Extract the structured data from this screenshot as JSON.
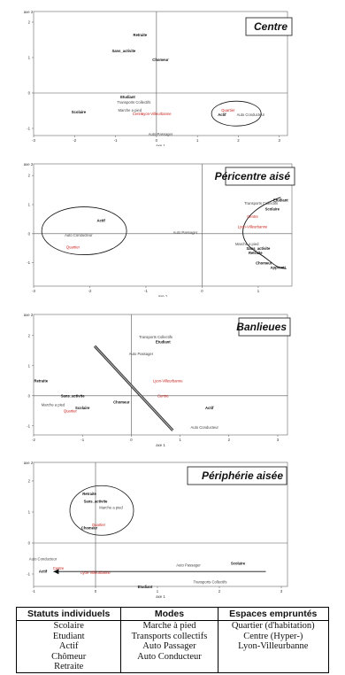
{
  "chart_data": [
    {
      "type": "scatter",
      "title": "Centre",
      "xlabel": "axe 1",
      "ylabel": "axe 2",
      "xticks": [
        "-3",
        "-2",
        "-1",
        "0",
        "1",
        "2",
        "3"
      ],
      "yticks": [
        "2",
        "1",
        "0",
        "-1"
      ],
      "xlim": [
        -3,
        3.2
      ],
      "ylim": [
        -1.2,
        2.3
      ],
      "points": [
        {
          "label": "Retraite",
          "x": -0.4,
          "y": 1.6,
          "color": "black"
        },
        {
          "label": "Sans_activite",
          "x": -0.8,
          "y": 1.15,
          "color": "black"
        },
        {
          "label": "Chomeur",
          "x": 0.1,
          "y": 0.9,
          "color": "black"
        },
        {
          "label": "Etudiant",
          "x": -0.7,
          "y": -0.15,
          "color": "black"
        },
        {
          "label": "Transports Collectifs",
          "x": -0.55,
          "y": -0.3,
          "color": "gray"
        },
        {
          "label": "Marche a pied",
          "x": -0.65,
          "y": -0.52,
          "color": "gray"
        },
        {
          "label": "Centre",
          "x": -0.45,
          "y": -0.62,
          "color": "red"
        },
        {
          "label": "Lyon-Villeurbanne",
          "x": 0.0,
          "y": -0.62,
          "color": "red"
        },
        {
          "label": "Scolaire",
          "x": -1.9,
          "y": -0.58,
          "color": "black"
        },
        {
          "label": "Auto Passager",
          "x": 0.1,
          "y": -1.2,
          "color": "gray"
        },
        {
          "label": "Quartier",
          "x": 1.75,
          "y": -0.52,
          "color": "red"
        },
        {
          "label": "Actif",
          "x": 1.6,
          "y": -0.65,
          "color": "black"
        },
        {
          "label": "Auto Conducteur",
          "x": 2.3,
          "y": -0.65,
          "color": "gray"
        }
      ],
      "shape": "ellipse"
    },
    {
      "type": "scatter",
      "title": "Péricentre aisé",
      "xlabel": "axe 1",
      "ylabel": "axe 2",
      "xticks": [
        "-3",
        "-2",
        "-1",
        "0",
        "1"
      ],
      "yticks": [
        "2",
        "1",
        "0",
        "-1"
      ],
      "xlim": [
        -3,
        1.6
      ],
      "ylim": [
        -1.8,
        2.4
      ],
      "points": [
        {
          "label": "Etudiant",
          "x": 1.4,
          "y": 1.1,
          "color": "black"
        },
        {
          "label": "Transports Collectifs",
          "x": 1.05,
          "y": 1.0,
          "color": "gray"
        },
        {
          "label": "Scolaire",
          "x": 1.25,
          "y": 0.8,
          "color": "black"
        },
        {
          "label": "Centre",
          "x": 0.9,
          "y": 0.55,
          "color": "red"
        },
        {
          "label": "Lyon-Villeurbanne",
          "x": 0.9,
          "y": 0.2,
          "color": "red"
        },
        {
          "label": "Auto Passager",
          "x": -0.3,
          "y": 0.0,
          "color": "gray"
        },
        {
          "label": "Actif",
          "x": -1.8,
          "y": 0.4,
          "color": "black"
        },
        {
          "label": "Auto Conducteur",
          "x": -2.2,
          "y": -0.1,
          "color": "gray"
        },
        {
          "label": "Quartier",
          "x": -2.3,
          "y": -0.5,
          "color": "red"
        },
        {
          "label": "Marche a pied",
          "x": 0.8,
          "y": -0.4,
          "color": "gray"
        },
        {
          "label": "Sans_activite",
          "x": 1.0,
          "y": -0.55,
          "color": "black"
        },
        {
          "label": "Retraite",
          "x": 0.95,
          "y": -0.7,
          "color": "black"
        },
        {
          "label": "Chomeur",
          "x": 1.1,
          "y": -1.05,
          "color": "black"
        },
        {
          "label": "Apprenti",
          "x": 1.35,
          "y": -1.2,
          "color": "black"
        }
      ],
      "shape": "ellipse"
    },
    {
      "type": "scatter",
      "title": "Banlieues",
      "xlabel": "axe 1",
      "ylabel": "axe 2",
      "xticks": [
        "-2",
        "-1",
        "0",
        "1",
        "2",
        "3"
      ],
      "yticks": [
        "2",
        "1",
        "0",
        "-1"
      ],
      "xlim": [
        -2,
        3.2
      ],
      "ylim": [
        -1.3,
        2.7
      ],
      "points": [
        {
          "label": "Transports Collectifs",
          "x": 0.5,
          "y": 1.9,
          "color": "gray"
        },
        {
          "label": "Etudiant",
          "x": 0.65,
          "y": 1.75,
          "color": "black"
        },
        {
          "label": "Auto Passager",
          "x": 0.2,
          "y": 1.35,
          "color": "gray"
        },
        {
          "label": "Retraite",
          "x": -1.85,
          "y": 0.45,
          "color": "black"
        },
        {
          "label": "Lyon-Villeurbanne",
          "x": 0.75,
          "y": 0.45,
          "color": "red"
        },
        {
          "label": "Sans_activite",
          "x": -1.2,
          "y": -0.05,
          "color": "black"
        },
        {
          "label": "Centre",
          "x": 0.65,
          "y": -0.05,
          "color": "red"
        },
        {
          "label": "Marche a pied",
          "x": -1.6,
          "y": -0.35,
          "color": "gray"
        },
        {
          "label": "Chomeur",
          "x": -0.2,
          "y": -0.25,
          "color": "black"
        },
        {
          "label": "Scolaire",
          "x": -1.0,
          "y": -0.45,
          "color": "black"
        },
        {
          "label": "Quartier",
          "x": -1.25,
          "y": -0.55,
          "color": "red"
        },
        {
          "label": "Actif",
          "x": 1.6,
          "y": -0.45,
          "color": "black"
        },
        {
          "label": "Auto Conducteur",
          "x": 1.5,
          "y": -1.1,
          "color": "gray"
        }
      ],
      "shape": "diagonal-bar"
    },
    {
      "type": "scatter",
      "title": "Périphérie aisée",
      "xlabel": "axe 1",
      "ylabel": "axe 2",
      "xticks": [
        "-1",
        "0",
        "1",
        "2",
        "3"
      ],
      "yticks": [
        "2",
        "1",
        "0",
        "-1"
      ],
      "xlim": [
        -1,
        3.1
      ],
      "ylim": [
        -1.4,
        2.6
      ],
      "points": [
        {
          "label": "Retraite",
          "x": -0.1,
          "y": 1.55,
          "color": "black"
        },
        {
          "label": "Sans_activite",
          "x": 0.0,
          "y": 1.3,
          "color": "black"
        },
        {
          "label": "Marche a pied",
          "x": 0.25,
          "y": 1.1,
          "color": "gray"
        },
        {
          "label": "Quartier",
          "x": 0.05,
          "y": 0.55,
          "color": "red"
        },
        {
          "label": "Chomeur",
          "x": -0.1,
          "y": 0.45,
          "color": "black"
        },
        {
          "label": "Auto Conducteur",
          "x": -0.85,
          "y": -0.55,
          "color": "gray"
        },
        {
          "label": "Centre",
          "x": -0.6,
          "y": -0.85,
          "color": "red"
        },
        {
          "label": "Actif",
          "x": -0.85,
          "y": -0.95,
          "color": "black"
        },
        {
          "label": "Lyon-Villeurbanne",
          "x": 0.0,
          "y": -1.0,
          "color": "red"
        },
        {
          "label": "Auto Passager",
          "x": 1.5,
          "y": -0.75,
          "color": "gray"
        },
        {
          "label": "Scolaire",
          "x": 2.3,
          "y": -0.7,
          "color": "black"
        },
        {
          "label": "Transports Collectifs",
          "x": 1.85,
          "y": -1.3,
          "color": "gray"
        },
        {
          "label": "Etudiant",
          "x": 0.8,
          "y": -1.45,
          "color": "black"
        }
      ],
      "shape": "ellipse-arrow"
    }
  ],
  "legend_table": {
    "headers": [
      "Statuts individuels",
      "Modes",
      "Espaces empruntés"
    ],
    "columns": [
      [
        "Scolaire",
        "Etudiant",
        "Actif",
        "Chômeur",
        "Retraite"
      ],
      [
        "Marche à pied",
        "Transports collectifs",
        "Auto Passager",
        "Auto Conducteur"
      ],
      [
        "Quartier (d'habitation)",
        "Centre (Hyper-)",
        "Lyon-Villeurbanne"
      ]
    ]
  },
  "colors": {
    "black": "#111111",
    "red": "#c8201b",
    "gray": "#444444"
  }
}
